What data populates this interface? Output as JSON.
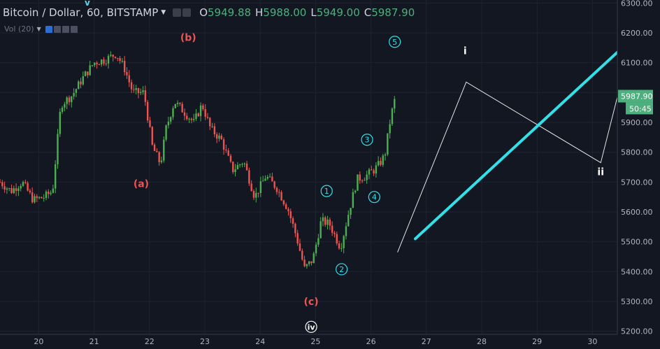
{
  "header": {
    "title": "Bitcoin / Dollar, 60, BITSTAMP",
    "ohlc": [
      {
        "key": "O",
        "value": "5949.88"
      },
      {
        "key": "H",
        "value": "5988.00"
      },
      {
        "key": "L",
        "value": "5949.00"
      },
      {
        "key": "C",
        "value": "5987.90"
      }
    ],
    "volume_label": "Vol (20)"
  },
  "top_mark": "v",
  "colors": {
    "background": "#131722",
    "up": "#4caf50",
    "down": "#ef5350",
    "accent_cyan": "#33e0e8",
    "price_tag": "#4caf7d",
    "wave_red": "#ef5350"
  },
  "chart_data": {
    "type": "candlestick",
    "x_ticks": [
      "20",
      "21",
      "22",
      "23",
      "24",
      "25",
      "26",
      "27",
      "28",
      "29",
      "30"
    ],
    "y_ticks": [
      "5200.00",
      "5300.00",
      "5400.00",
      "5500.00",
      "5600.00",
      "5700.00",
      "5800.00",
      "5900.00",
      "6000.00",
      "6100.00",
      "6200.00",
      "6300.00"
    ],
    "ylim": [
      5190,
      6310
    ],
    "xlim": [
      19.3,
      30.45
    ],
    "price_path": [
      [
        19.3,
        5700
      ],
      [
        19.5,
        5670
      ],
      [
        19.7,
        5700
      ],
      [
        19.9,
        5640
      ],
      [
        20.1,
        5650
      ],
      [
        20.25,
        5670
      ],
      [
        20.4,
        5960
      ],
      [
        20.6,
        5990
      ],
      [
        20.8,
        6050
      ],
      [
        21.0,
        6100
      ],
      [
        21.2,
        6110
      ],
      [
        21.4,
        6130
      ],
      [
        21.55,
        6080
      ],
      [
        21.7,
        6000
      ],
      [
        21.9,
        6000
      ],
      [
        22.05,
        5820
      ],
      [
        22.2,
        5760
      ],
      [
        22.3,
        5880
      ],
      [
        22.45,
        5970
      ],
      [
        22.6,
        5940
      ],
      [
        22.8,
        5900
      ],
      [
        22.95,
        5960
      ],
      [
        23.1,
        5880
      ],
      [
        23.3,
        5840
      ],
      [
        23.5,
        5740
      ],
      [
        23.7,
        5770
      ],
      [
        23.9,
        5650
      ],
      [
        24.1,
        5720
      ],
      [
        24.3,
        5680
      ],
      [
        24.5,
        5610
      ],
      [
        24.65,
        5520
      ],
      [
        24.8,
        5410
      ],
      [
        24.95,
        5440
      ],
      [
        25.1,
        5570
      ],
      [
        25.25,
        5560
      ],
      [
        25.45,
        5480
      ],
      [
        25.6,
        5600
      ],
      [
        25.75,
        5710
      ],
      [
        25.9,
        5720
      ],
      [
        26.05,
        5740
      ],
      [
        26.15,
        5760
      ],
      [
        26.25,
        5790
      ],
      [
        26.35,
        5910
      ],
      [
        26.42,
        5970
      ],
      [
        26.46,
        5988
      ]
    ],
    "wave_labels": [
      {
        "text": "(a)",
        "x": 21.85,
        "y": 5695,
        "color": "red"
      },
      {
        "text": "(b)",
        "x": 22.7,
        "y": 6185,
        "color": "red"
      },
      {
        "text": "(c)",
        "x": 24.92,
        "y": 5300,
        "color": "red"
      },
      {
        "text": "iv",
        "x": 24.92,
        "y": 5215,
        "style": "circle-white"
      },
      {
        "text": "1",
        "x": 25.2,
        "y": 5670,
        "style": "circle-cyan"
      },
      {
        "text": "2",
        "x": 25.47,
        "y": 5408,
        "style": "circle-cyan"
      },
      {
        "text": "3",
        "x": 25.93,
        "y": 5842,
        "style": "circle-cyan"
      },
      {
        "text": "4",
        "x": 26.06,
        "y": 5650,
        "style": "circle-cyan"
      },
      {
        "text": "5",
        "x": 26.43,
        "y": 6170,
        "style": "circle-cyan"
      },
      {
        "text": "i",
        "x": 27.7,
        "y": 6140,
        "style": "plain-white"
      },
      {
        "text": "ii",
        "x": 30.15,
        "y": 5735,
        "style": "plain-white"
      }
    ],
    "projection_line": [
      [
        26.48,
        5465
      ],
      [
        27.72,
        6035
      ],
      [
        30.15,
        5765
      ],
      [
        30.45,
        5985
      ]
    ],
    "trend_line": [
      [
        26.8,
        5510
      ],
      [
        30.45,
        6135
      ]
    ],
    "last_price": "5987.90",
    "countdown": "50:45",
    "last_price_value": 5987.9
  }
}
